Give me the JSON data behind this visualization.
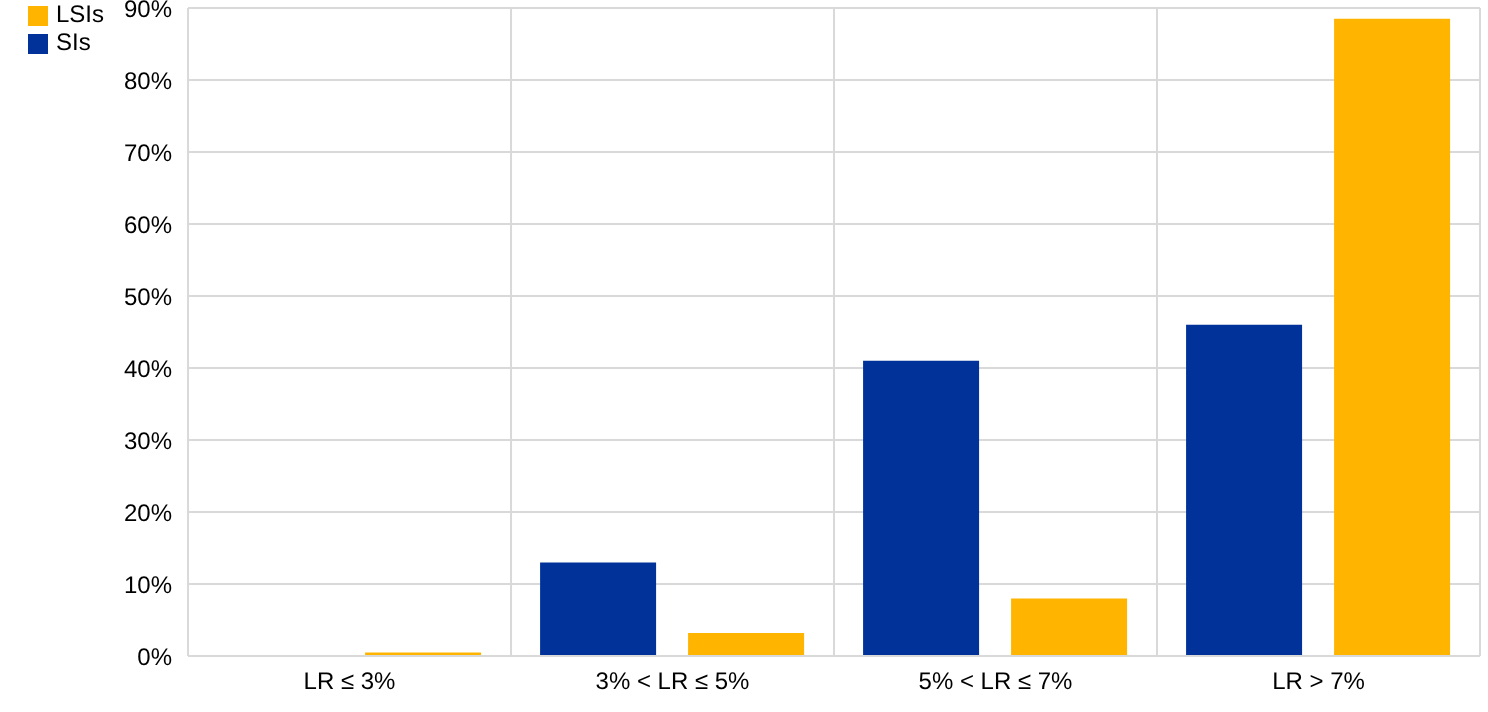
{
  "chart_data": {
    "type": "bar",
    "categories": [
      "LR ≤ 3%",
      "3% < LR ≤ 5%",
      "5% < LR ≤ 7%",
      "LR > 7%"
    ],
    "series": [
      {
        "name": "SIs",
        "color": "#003299",
        "values": [
          0,
          13,
          41,
          46
        ]
      },
      {
        "name": "LSIs",
        "color": "#ffb400",
        "values": [
          0.5,
          3.2,
          8,
          88.5
        ]
      }
    ],
    "ylim": [
      0,
      90
    ],
    "yticks": [
      {
        "value": 0,
        "label": "0%"
      },
      {
        "value": 10,
        "label": "10%"
      },
      {
        "value": 20,
        "label": "20%"
      },
      {
        "value": 30,
        "label": "30%"
      },
      {
        "value": 40,
        "label": "40%"
      },
      {
        "value": 50,
        "label": "50%"
      },
      {
        "value": 60,
        "label": "60%"
      },
      {
        "value": 70,
        "label": "70%"
      },
      {
        "value": 80,
        "label": "80%"
      },
      {
        "value": 90,
        "label": "90%"
      }
    ],
    "grid": true,
    "legend": "top left"
  }
}
